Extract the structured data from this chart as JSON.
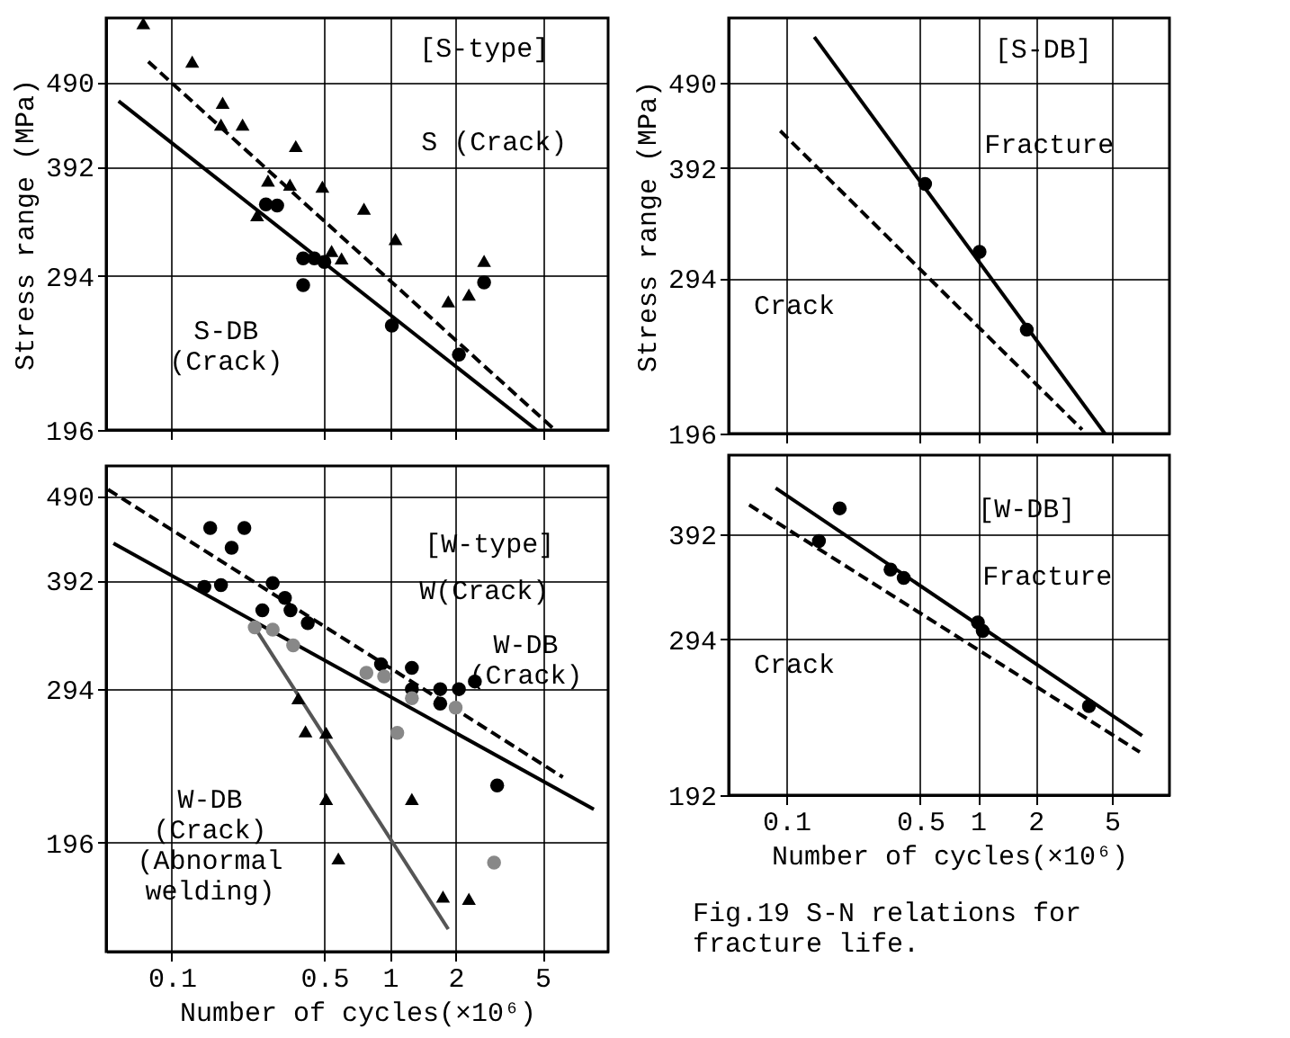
{
  "chart_data": [
    {
      "type": "scatter",
      "ylabel": "Stress range (MPa)",
      "xlim": [
        0.05,
        10
      ],
      "xticks": [
        0.1,
        0.5,
        1,
        2,
        5
      ],
      "ylim": [
        196,
        580
      ],
      "yticks": [
        196,
        294,
        392,
        490
      ],
      "log": "xy",
      "grid": true,
      "tick_labels": "y",
      "series": [
        {
          "type": "line",
          "line_style": "dashed",
          "marker": "none",
          "color": "#000000",
          "x": [
            0.078,
            5.7
          ],
          "values": [
            517,
            196
          ]
        },
        {
          "type": "line",
          "line_style": "solid",
          "marker": "none",
          "color": "#000000",
          "x": [
            0.057,
            4.7
          ],
          "values": [
            466,
            196
          ]
        },
        {
          "type": "scatter",
          "marker": "triangle",
          "color": "#000000",
          "x": [
            0.074,
            0.124,
            0.171,
            0.168,
            0.211,
            0.37,
            0.276,
            0.348,
            0.49,
            0.246,
            0.76,
            1.06,
            0.54,
            0.6,
            2.7,
            1.85,
            2.3
          ],
          "values": [
            572,
            517,
            464,
            438,
            438,
            414,
            378,
            374,
            372,
            345,
            351,
            324,
            314,
            308,
            306,
            275,
            280
          ]
        },
        {
          "type": "scatter",
          "marker": "circle",
          "color": "#000000",
          "x": [
            0.304,
            0.27,
            0.4,
            0.45,
            0.5,
            0.4,
            2.7,
            1.02,
            2.07
          ],
          "values": [
            354,
            355,
            308,
            308,
            305,
            287,
            289,
            258,
            239
          ]
        }
      ],
      "annotations": [
        "[S-type]",
        "S (Crack)",
        "S-DB\n(Crack)"
      ]
    },
    {
      "type": "scatter",
      "xlabel": "Number of cycles(×10⁶)",
      "xlim": [
        0.05,
        10
      ],
      "xticks": [
        0.1,
        0.5,
        1,
        2,
        5
      ],
      "ylim": [
        147,
        530
      ],
      "yticks": [
        196,
        294,
        392,
        490
      ],
      "log": "xy",
      "grid": true,
      "series": [
        {
          "type": "line",
          "line_style": "dashed",
          "marker": "none",
          "color": "#000000",
          "x": [
            0.051,
            6.2
          ],
          "values": [
            498,
            233
          ]
        },
        {
          "type": "line",
          "line_style": "solid",
          "marker": "none",
          "color": "#000000",
          "x": [
            0.054,
            8.6
          ],
          "values": [
            432,
            214
          ]
        },
        {
          "type": "line",
          "line_style": "solid",
          "marker": "none",
          "color": "#555555",
          "x": [
            0.24,
            1.85
          ],
          "values": [
            346,
            156
          ]
        },
        {
          "type": "scatter",
          "marker": "circle",
          "color": "#000000",
          "x": [
            0.15,
            0.215,
            0.188,
            0.141,
            0.168,
            0.29,
            0.33,
            0.26,
            0.35,
            0.42,
            0.91,
            1.26,
            1.26,
            1.7,
            1.7,
            2.07,
            2.45,
            3.1
          ],
          "values": [
            450,
            450,
            427,
            385,
            387,
            389,
            374,
            362,
            362,
            350,
            314,
            311,
            294,
            294,
            283,
            294,
            300,
            228
          ]
        },
        {
          "type": "scatter",
          "marker": "circle",
          "color": "#888888",
          "x": [
            0.24,
            0.29,
            0.36,
            0.78,
            0.94,
            1.26,
            1.08,
            2.0,
            3.0
          ],
          "values": [
            346,
            344,
            330,
            307,
            304,
            287,
            262,
            280,
            186
          ]
        },
        {
          "type": "scatter",
          "marker": "triangle",
          "color": "#000000",
          "x": [
            0.38,
            0.41,
            0.51,
            0.51,
            1.26,
            0.58,
            1.75,
            2.3
          ],
          "values": [
            287,
            263,
            262,
            220,
            220,
            188,
            170,
            169
          ]
        }
      ],
      "annotations": [
        "[W-type]",
        "W(Crack)",
        "W-DB\n(Crack)",
        "W-DB\n(Crack)\n(Abnormal\nwelding)"
      ]
    },
    {
      "type": "scatter",
      "ylabel": "Stress range (MPa)",
      "xlim": [
        0.05,
        10
      ],
      "xticks": [
        0.1,
        0.5,
        1,
        2,
        5
      ],
      "ylim": [
        196,
        580
      ],
      "yticks": [
        196,
        294,
        392,
        490
      ],
      "log": "xy",
      "grid": true,
      "tick_labels": "y",
      "series": [
        {
          "type": "line",
          "line_style": "solid",
          "marker": "none",
          "color": "#000000",
          "x": [
            0.14,
            4.6
          ],
          "values": [
            552,
            196
          ]
        },
        {
          "type": "line",
          "line_style": "dashed",
          "marker": "none",
          "color": "#000000",
          "x": [
            0.093,
            3.5
          ],
          "values": [
            432,
            198
          ]
        },
        {
          "type": "scatter",
          "marker": "circle",
          "color": "#000000",
          "x": [
            0.53,
            1.02,
            1.8
          ],
          "values": [
            376,
            315,
            257
          ]
        }
      ],
      "annotations": [
        "[S-DB]",
        "Fracture",
        "Crack"
      ]
    },
    {
      "type": "scatter",
      "xlabel": "Number of cycles(×10⁶)",
      "xlim": [
        0.05,
        10
      ],
      "xticks": [
        0.1,
        0.5,
        1,
        2,
        5
      ],
      "ylim": [
        192,
        487
      ],
      "yticks": [
        192,
        294,
        392
      ],
      "log": "xy",
      "grid": true,
      "series": [
        {
          "type": "line",
          "line_style": "solid",
          "marker": "none",
          "color": "#000000",
          "x": [
            0.088,
            7.2
          ],
          "values": [
            445,
            226
          ]
        },
        {
          "type": "line",
          "line_style": "dashed",
          "marker": "none",
          "color": "#000000",
          "x": [
            0.064,
            7.0
          ],
          "values": [
            425,
            216
          ]
        },
        {
          "type": "scatter",
          "marker": "circle",
          "color": "#000000",
          "x": [
            0.19,
            0.148,
            0.35,
            0.41,
            1.0,
            1.06,
            3.8
          ],
          "values": [
            421,
            385,
            356,
            348,
            308,
            301,
            245
          ]
        }
      ],
      "annotations": [
        "[W-DB]",
        "Fracture",
        "Crack",
        "Fig.19 S-N relations for\nfracture life."
      ]
    }
  ]
}
